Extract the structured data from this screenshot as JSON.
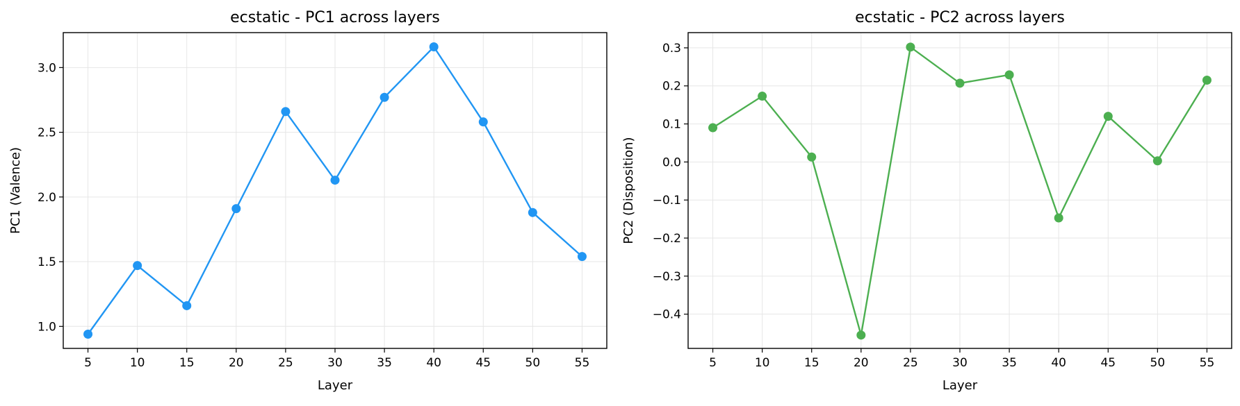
{
  "chart_data": [
    {
      "type": "line",
      "title": "ecstatic - PC1 across layers",
      "xlabel": "Layer",
      "ylabel": "PC1 (Valence)",
      "x": [
        5,
        10,
        15,
        20,
        25,
        30,
        35,
        40,
        45,
        50,
        55
      ],
      "xticks": [
        "5",
        "10",
        "15",
        "20",
        "25",
        "30",
        "35",
        "40",
        "45",
        "50",
        "55"
      ],
      "yticks": [
        "1.0",
        "1.5",
        "2.0",
        "2.5",
        "3.0"
      ],
      "xlim": [
        2.5,
        57.5
      ],
      "ylim": [
        0.83,
        3.27
      ],
      "grid": true,
      "series": [
        {
          "color": "#2196F3",
          "values": [
            0.94,
            1.47,
            1.16,
            1.91,
            2.66,
            2.13,
            2.77,
            3.16,
            2.58,
            1.88,
            1.54
          ]
        }
      ]
    },
    {
      "type": "line",
      "title": "ecstatic - PC2 across layers",
      "xlabel": "Layer",
      "ylabel": "PC2 (Disposition)",
      "x": [
        5,
        10,
        15,
        20,
        25,
        30,
        35,
        40,
        45,
        50,
        55
      ],
      "xticks": [
        "5",
        "10",
        "15",
        "20",
        "25",
        "30",
        "35",
        "40",
        "45",
        "50",
        "55"
      ],
      "yticks": [
        "−0.4",
        "−0.3",
        "−0.2",
        "−0.1",
        "0.0",
        "0.1",
        "0.2",
        "0.3"
      ],
      "xlim": [
        2.5,
        57.5
      ],
      "ylim": [
        -0.49,
        0.34
      ],
      "grid": true,
      "series": [
        {
          "color": "#4CAF50",
          "values": [
            0.09,
            0.173,
            0.013,
            -0.455,
            0.302,
            0.207,
            0.229,
            -0.147,
            0.12,
            0.003,
            0.215
          ]
        }
      ]
    }
  ]
}
